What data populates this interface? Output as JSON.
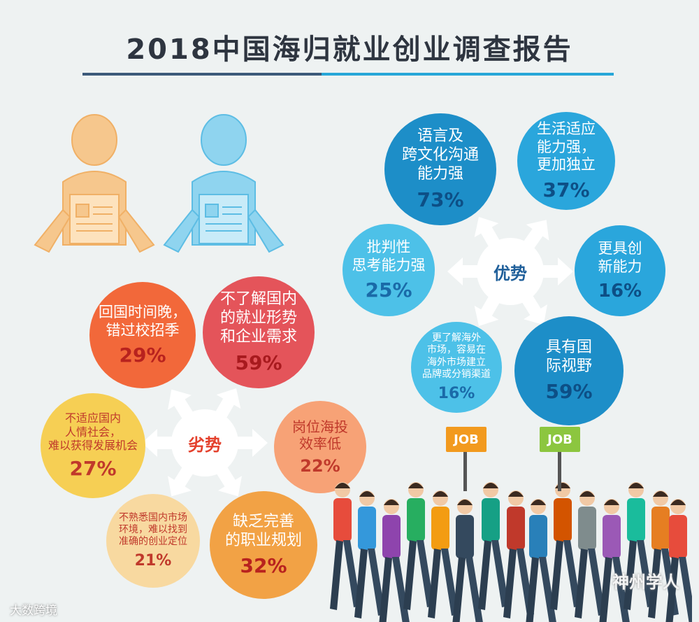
{
  "title": "2018中国海归就业创业调查报告",
  "advantages": {
    "hub_label": "优势",
    "items": [
      {
        "text": "语言及\n跨文化沟通\n能力强",
        "pct": "73%"
      },
      {
        "text": "生活适应\n能力强，\n更加独立",
        "pct": "37%"
      },
      {
        "text": "批判性\n思考能力强",
        "pct": "25%"
      },
      {
        "text": "更具创\n新能力",
        "pct": "16%"
      },
      {
        "text": "更了解海外\n市场，容易在\n海外市场建立\n品牌或分销渠道",
        "pct": "16%"
      },
      {
        "text": "具有国\n际视野",
        "pct": "59%"
      }
    ]
  },
  "disadvantages": {
    "hub_label": "劣势",
    "items": [
      {
        "text": "回国时间晚，\n错过校招季",
        "pct": "29%"
      },
      {
        "text": "不了解国内\n的就业形势\n和企业需求",
        "pct": "59%"
      },
      {
        "text": "不适应国内\n人情社会，\n难以获得发展机会",
        "pct": "27%"
      },
      {
        "text": "岗位海投\n效率低",
        "pct": "22%"
      },
      {
        "text": "不熟悉国内市场\n环境，难以找到\n准确的创业定位",
        "pct": "21%"
      },
      {
        "text": "缺乏完善\n的职业规划",
        "pct": "32%"
      }
    ]
  },
  "signs": [
    "JOB",
    "JOB"
  ],
  "brand": "神州学人",
  "watermark": "大数跨境",
  "colors": {
    "adv_dark": "#1d8ec8",
    "adv_mid": "#2aa6dc",
    "adv_light": "#4dc1e8",
    "dis_orange": "#f2683a",
    "dis_red": "#e4545a",
    "dis_yellow": "#f6cf54",
    "dis_peach": "#f7a276",
    "dis_light": "#f8d9a0",
    "dis_amber": "#f2a245"
  },
  "icons": [
    "person-with-resume-icon",
    "person-with-resume-icon",
    "crowd-illustration"
  ]
}
